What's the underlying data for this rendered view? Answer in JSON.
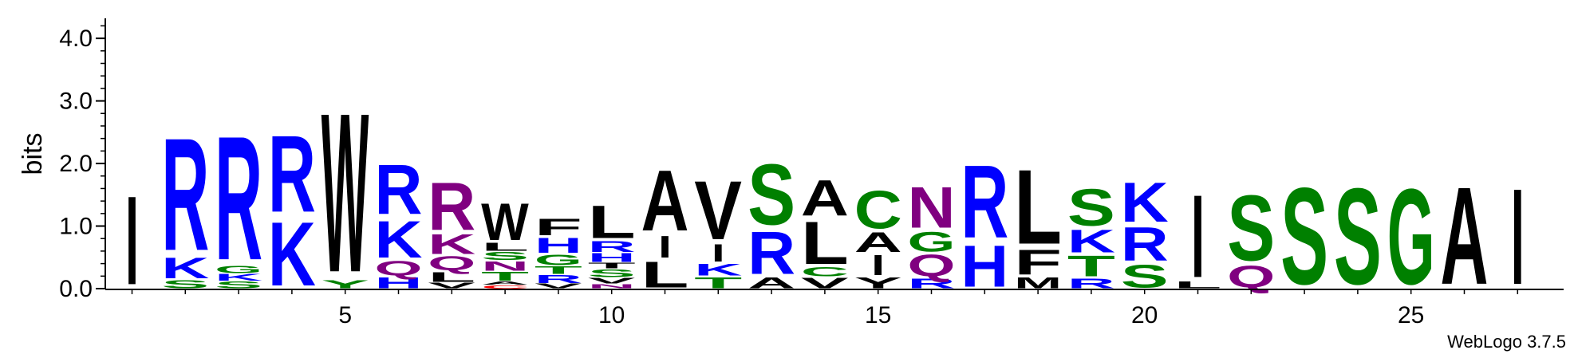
{
  "chart_data": {
    "type": "sequence-logo",
    "ylabel": "bits",
    "ylim": [
      0,
      4.32
    ],
    "yticks": [
      0.0,
      1.0,
      2.0,
      3.0,
      4.0
    ],
    "ytick_labels": [
      "0.0",
      "1.0",
      "2.0",
      "3.0",
      "4.0"
    ],
    "xticks": [
      5,
      10,
      15,
      20,
      25
    ],
    "xtick_labels": [
      "5",
      "10",
      "15",
      "20",
      "25"
    ],
    "positions": [
      {
        "pos": 1,
        "stack": [
          {
            "letter": "I",
            "bits": 1.63,
            "color": "#000000"
          }
        ]
      },
      {
        "pos": 2,
        "stack": [
          {
            "letter": "S",
            "bits": 0.15,
            "color": "#008000"
          },
          {
            "letter": "K",
            "bits": 0.38,
            "color": "#0000FF"
          },
          {
            "letter": "R",
            "bits": 2.07,
            "color": "#0000FF"
          }
        ]
      },
      {
        "pos": 3,
        "stack": [
          {
            "letter": "S",
            "bits": 0.12,
            "color": "#008000"
          },
          {
            "letter": "K",
            "bits": 0.12,
            "color": "#0000FF"
          },
          {
            "letter": "G",
            "bits": 0.13,
            "color": "#008000"
          },
          {
            "letter": "R",
            "bits": 2.28,
            "color": "#0000FF"
          }
        ]
      },
      {
        "pos": 4,
        "stack": [
          {
            "letter": "K",
            "bits": 1.17,
            "color": "#0000FF"
          },
          {
            "letter": "R",
            "bits": 1.41,
            "color": "#0000FF"
          }
        ]
      },
      {
        "pos": 5,
        "stack": [
          {
            "letter": "Y",
            "bits": 0.15,
            "color": "#008000"
          },
          {
            "letter": "W",
            "bits": 2.93,
            "color": "#000000"
          }
        ]
      },
      {
        "pos": 6,
        "stack": [
          {
            "letter": "H",
            "bits": 0.2,
            "color": "#0000FF"
          },
          {
            "letter": "Q",
            "bits": 0.27,
            "color": "#800080"
          },
          {
            "letter": "K",
            "bits": 0.68,
            "color": "#0000FF"
          },
          {
            "letter": "R",
            "bits": 0.92,
            "color": "#0000FF"
          }
        ]
      },
      {
        "pos": 7,
        "stack": [
          {
            "letter": "V",
            "bits": 0.1,
            "color": "#000000"
          },
          {
            "letter": "L",
            "bits": 0.18,
            "color": "#000000"
          },
          {
            "letter": "Q",
            "bits": 0.26,
            "color": "#800080"
          },
          {
            "letter": "K",
            "bits": 0.36,
            "color": "#800080"
          },
          {
            "letter": "R",
            "bits": 0.88,
            "color": "#800080"
          }
        ]
      },
      {
        "pos": 8,
        "stack": [
          {
            "letter": "C",
            "bits": 0.06,
            "color": "#FF0000"
          },
          {
            "letter": "A",
            "bits": 0.06,
            "color": "#000000"
          },
          {
            "letter": "T",
            "bits": 0.16,
            "color": "#008000"
          },
          {
            "letter": "N",
            "bits": 0.17,
            "color": "#800080"
          },
          {
            "letter": "S",
            "bits": 0.15,
            "color": "#008000"
          },
          {
            "letter": "L",
            "bits": 0.15,
            "color": "#000000"
          },
          {
            "letter": "W",
            "bits": 0.68,
            "color": "#000000"
          }
        ]
      },
      {
        "pos": 9,
        "stack": [
          {
            "letter": "V",
            "bits": 0.08,
            "color": "#000000"
          },
          {
            "letter": "R",
            "bits": 0.15,
            "color": "#0000FF"
          },
          {
            "letter": "T",
            "bits": 0.14,
            "color": "#008000"
          },
          {
            "letter": "G",
            "bits": 0.19,
            "color": "#008000"
          },
          {
            "letter": "H",
            "bits": 0.28,
            "color": "#0000FF"
          },
          {
            "letter": "F",
            "bits": 0.3,
            "color": "#000000"
          }
        ]
      },
      {
        "pos": 10,
        "stack": [
          {
            "letter": "N",
            "bits": 0.08,
            "color": "#800080"
          },
          {
            "letter": "V",
            "bits": 0.1,
            "color": "#000000"
          },
          {
            "letter": "S",
            "bits": 0.14,
            "color": "#008000"
          },
          {
            "letter": "T",
            "bits": 0.1,
            "color": "#000000"
          },
          {
            "letter": "H",
            "bits": 0.16,
            "color": "#0000FF"
          },
          {
            "letter": "R",
            "bits": 0.2,
            "color": "#0000FF"
          },
          {
            "letter": "L",
            "bits": 0.6,
            "color": "#000000"
          }
        ]
      },
      {
        "pos": 11,
        "stack": [
          {
            "letter": "L",
            "bits": 0.48,
            "color": "#000000"
          },
          {
            "letter": "I",
            "bits": 0.4,
            "color": "#000000"
          },
          {
            "letter": "A",
            "bits": 1.12,
            "color": "#000000"
          }
        ]
      },
      {
        "pos": 12,
        "stack": [
          {
            "letter": "T",
            "bits": 0.2,
            "color": "#008000"
          },
          {
            "letter": "K",
            "bits": 0.22,
            "color": "#0000FF"
          },
          {
            "letter": "I",
            "bits": 0.32,
            "color": "#000000"
          },
          {
            "letter": "V",
            "bits": 1.08,
            "color": "#000000"
          }
        ]
      },
      {
        "pos": 13,
        "stack": [
          {
            "letter": "A",
            "bits": 0.2,
            "color": "#000000"
          },
          {
            "letter": "R",
            "bits": 0.78,
            "color": "#0000FF"
          },
          {
            "letter": "S",
            "bits": 1.12,
            "color": "#008000"
          }
        ]
      },
      {
        "pos": 14,
        "stack": [
          {
            "letter": "V",
            "bits": 0.19,
            "color": "#000000"
          },
          {
            "letter": "C",
            "bits": 0.17,
            "color": "#008000"
          },
          {
            "letter": "L",
            "bits": 0.78,
            "color": "#000000"
          },
          {
            "letter": "A",
            "bits": 0.66,
            "color": "#000000"
          }
        ]
      },
      {
        "pos": 15,
        "stack": [
          {
            "letter": "Y",
            "bits": 0.2,
            "color": "#000000"
          },
          {
            "letter": "I",
            "bits": 0.37,
            "color": "#000000"
          },
          {
            "letter": "A",
            "bits": 0.36,
            "color": "#000000"
          },
          {
            "letter": "C",
            "bits": 0.7,
            "color": "#008000"
          }
        ]
      },
      {
        "pos": 16,
        "stack": [
          {
            "letter": "R",
            "bits": 0.18,
            "color": "#0000FF"
          },
          {
            "letter": "Q",
            "bits": 0.4,
            "color": "#800080"
          },
          {
            "letter": "G",
            "bits": 0.36,
            "color": "#008000"
          },
          {
            "letter": "N",
            "bits": 0.75,
            "color": "#800080"
          }
        ]
      },
      {
        "pos": 17,
        "stack": [
          {
            "letter": "H",
            "bits": 0.76,
            "color": "#0000FF"
          },
          {
            "letter": "R",
            "bits": 1.34,
            "color": "#0000FF"
          }
        ]
      },
      {
        "pos": 18,
        "stack": [
          {
            "letter": "M",
            "bits": 0.2,
            "color": "#000000"
          },
          {
            "letter": "F",
            "bits": 0.46,
            "color": "#000000"
          },
          {
            "letter": "L",
            "bits": 1.37,
            "color": "#000000"
          }
        ]
      },
      {
        "pos": 19,
        "stack": [
          {
            "letter": "R",
            "bits": 0.18,
            "color": "#0000FF"
          },
          {
            "letter": "T",
            "bits": 0.38,
            "color": "#008000"
          },
          {
            "letter": "K",
            "bits": 0.42,
            "color": "#0000FF"
          },
          {
            "letter": "S",
            "bits": 0.68,
            "color": "#008000"
          }
        ]
      },
      {
        "pos": 20,
        "stack": [
          {
            "letter": "S",
            "bits": 0.42,
            "color": "#008000"
          },
          {
            "letter": "R",
            "bits": 0.62,
            "color": "#0000FF"
          },
          {
            "letter": "K",
            "bits": 0.72,
            "color": "#0000FF"
          }
        ]
      },
      {
        "pos": 21,
        "stack": [
          {
            "letter": "L",
            "bits": 0.12,
            "color": "#000000"
          },
          {
            "letter": "I",
            "bits": 1.52,
            "color": "#000000"
          }
        ]
      },
      {
        "pos": 22,
        "stack": [
          {
            "letter": "Q",
            "bits": 0.4,
            "color": "#800080"
          },
          {
            "letter": "S",
            "bits": 1.2,
            "color": "#008000"
          }
        ]
      },
      {
        "pos": 23,
        "stack": [
          {
            "letter": "S",
            "bits": 1.78,
            "color": "#008000"
          }
        ]
      },
      {
        "pos": 24,
        "stack": [
          {
            "letter": "S",
            "bits": 1.77,
            "color": "#008000"
          }
        ]
      },
      {
        "pos": 25,
        "stack": [
          {
            "letter": "G",
            "bits": 1.76,
            "color": "#008000"
          }
        ]
      },
      {
        "pos": 26,
        "stack": [
          {
            "letter": "A",
            "bits": 1.79,
            "color": "#000000"
          }
        ]
      },
      {
        "pos": 27,
        "stack": [
          {
            "letter": "I",
            "bits": 1.76,
            "color": "#000000"
          }
        ]
      }
    ]
  },
  "footer": {
    "credit": "WebLogo 3.7.5"
  }
}
